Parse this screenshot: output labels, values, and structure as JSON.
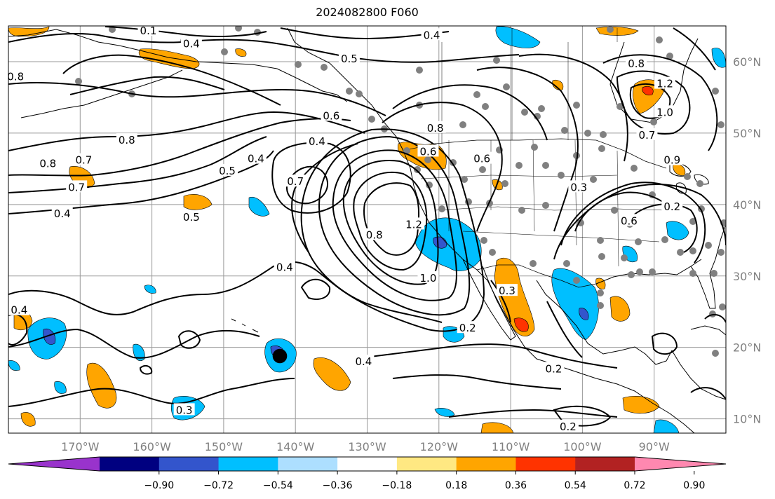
{
  "title": "2024082800 F060",
  "lon_ticks": [
    {
      "lon": -170,
      "label": "170°W"
    },
    {
      "lon": -160,
      "label": "160°W"
    },
    {
      "lon": -150,
      "label": "150°W"
    },
    {
      "lon": -140,
      "label": "140°W"
    },
    {
      "lon": -130,
      "label": "130°W"
    },
    {
      "lon": -120,
      "label": "120°W"
    },
    {
      "lon": -110,
      "label": "110°W"
    },
    {
      "lon": -100,
      "label": "100°W"
    },
    {
      "lon": -90,
      "label": "90°W"
    }
  ],
  "lat_ticks": [
    {
      "lat": 60,
      "label": "60°N"
    },
    {
      "lat": 50,
      "label": "50°N"
    },
    {
      "lat": 40,
      "label": "40°N"
    },
    {
      "lat": 30,
      "label": "30°N"
    },
    {
      "lat": 20,
      "label": "20°N"
    },
    {
      "lat": 10,
      "label": "10°N"
    }
  ],
  "extent": {
    "lon_min": -180,
    "lon_max": -80,
    "lat_min": 8,
    "lat_max": 65
  },
  "colorbar": {
    "colors": [
      "#9933cc",
      "#000080",
      "#3355cc",
      "#00bfff",
      "#addfff",
      "#ffffff",
      "#ffe882",
      "#ffa500",
      "#ff3300",
      "#b22222",
      "#ff88b0"
    ],
    "ticks": [
      "−0.90",
      "−0.72",
      "−0.54",
      "−0.36",
      "−0.18",
      "0.18",
      "0.36",
      "0.54",
      "0.72",
      "0.90"
    ]
  },
  "contour_labels": [
    {
      "lon": -160.5,
      "lat": 64.2,
      "text": "0.1"
    },
    {
      "lon": -154.5,
      "lat": 62.4,
      "text": "0.4"
    },
    {
      "lon": -121,
      "lat": 63.6,
      "text": "0.4"
    },
    {
      "lon": -132.5,
      "lat": 60.3,
      "text": "0.5"
    },
    {
      "lon": -179,
      "lat": 57.8,
      "text": "0.8"
    },
    {
      "lon": -135,
      "lat": 52.3,
      "text": "0.6"
    },
    {
      "lon": -120.5,
      "lat": 50.6,
      "text": "0.8"
    },
    {
      "lon": -137,
      "lat": 48.7,
      "text": "0.4"
    },
    {
      "lon": -163.5,
      "lat": 48.9,
      "text": "0.8"
    },
    {
      "lon": -174.5,
      "lat": 45.6,
      "text": "0.8"
    },
    {
      "lon": -169.5,
      "lat": 46.1,
      "text": "0.7"
    },
    {
      "lon": -170.5,
      "lat": 42.3,
      "text": "0.7"
    },
    {
      "lon": -149.5,
      "lat": 44.6,
      "text": "0.5"
    },
    {
      "lon": -145.5,
      "lat": 46.3,
      "text": "0.4"
    },
    {
      "lon": -140,
      "lat": 43.1,
      "text": "0.7"
    },
    {
      "lon": -172.5,
      "lat": 38.6,
      "text": "0.4"
    },
    {
      "lon": -154.5,
      "lat": 38.1,
      "text": "0.5"
    },
    {
      "lon": -129,
      "lat": 35.6,
      "text": "0.8"
    },
    {
      "lon": -123.5,
      "lat": 37.1,
      "text": "1.2"
    },
    {
      "lon": -121.5,
      "lat": 29.6,
      "text": "1.0"
    },
    {
      "lon": -121.5,
      "lat": 47.3,
      "text": "0.6"
    },
    {
      "lon": -114,
      "lat": 46.3,
      "text": "0.6"
    },
    {
      "lon": -100.5,
      "lat": 42.3,
      "text": "0.3"
    },
    {
      "lon": -93.5,
      "lat": 37.6,
      "text": "0.6"
    },
    {
      "lon": -87.5,
      "lat": 39.6,
      "text": "0.2"
    },
    {
      "lon": -91,
      "lat": 49.6,
      "text": "0.7"
    },
    {
      "lon": -88.5,
      "lat": 52.8,
      "text": "1.0"
    },
    {
      "lon": -88.5,
      "lat": 56.8,
      "text": "1.2"
    },
    {
      "lon": -92.5,
      "lat": 59.6,
      "text": "0.8"
    },
    {
      "lon": -87.5,
      "lat": 46.1,
      "text": "0.9"
    },
    {
      "lon": -141.5,
      "lat": 31.1,
      "text": "0.4"
    },
    {
      "lon": -178.5,
      "lat": 25.1,
      "text": "0.4"
    },
    {
      "lon": -130.5,
      "lat": 17.9,
      "text": "0.4"
    },
    {
      "lon": -116,
      "lat": 22.6,
      "text": "0.2"
    },
    {
      "lon": -110.5,
      "lat": 27.8,
      "text": "0.3"
    },
    {
      "lon": -104,
      "lat": 16.9,
      "text": "0.2"
    },
    {
      "lon": -102,
      "lat": 8.8,
      "text": "0.2"
    },
    {
      "lon": -155.5,
      "lat": 11.1,
      "text": "0.3"
    }
  ]
}
